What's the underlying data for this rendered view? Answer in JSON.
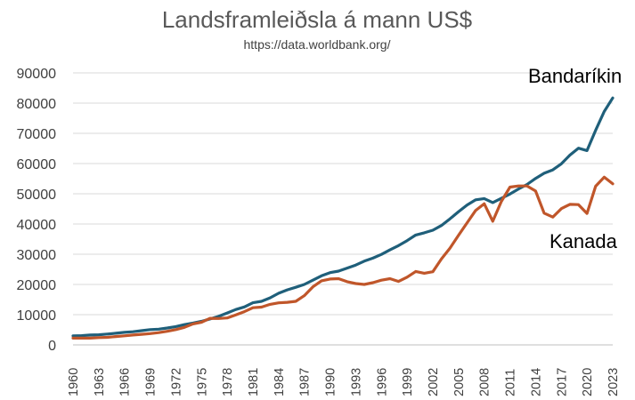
{
  "chart_data": {
    "type": "line",
    "title": "Landsframleiðsla á mann US$",
    "subtitle": "https://data.worldbank.org/",
    "xlabel": "",
    "ylabel": "",
    "ylim": [
      0,
      90000
    ],
    "yticks": [
      0,
      10000,
      20000,
      30000,
      40000,
      50000,
      60000,
      70000,
      80000,
      90000
    ],
    "xtick_labels": [
      "1960",
      "1963",
      "1966",
      "1969",
      "1972",
      "1975",
      "1978",
      "1981",
      "1984",
      "1987",
      "1990",
      "1993",
      "1996",
      "1999",
      "2002",
      "2005",
      "2008",
      "2011",
      "2014",
      "2017",
      "2020",
      "2023"
    ],
    "grid": true,
    "legend": "none",
    "x": [
      1960,
      1961,
      1962,
      1963,
      1964,
      1965,
      1966,
      1967,
      1968,
      1969,
      1970,
      1971,
      1972,
      1973,
      1974,
      1975,
      1976,
      1977,
      1978,
      1979,
      1980,
      1981,
      1982,
      1983,
      1984,
      1985,
      1986,
      1987,
      1988,
      1989,
      1990,
      1991,
      1992,
      1993,
      1994,
      1995,
      1996,
      1997,
      1998,
      1999,
      2000,
      2001,
      2002,
      2003,
      2004,
      2005,
      2006,
      2007,
      2008,
      2009,
      2010,
      2011,
      2012,
      2013,
      2014,
      2015,
      2016,
      2017,
      2018,
      2019,
      2020,
      2021,
      2022,
      2023
    ],
    "series": [
      {
        "name": "Bandaríkin",
        "color": "#1f5f7a",
        "values": [
          3000,
          3050,
          3250,
          3350,
          3600,
          3850,
          4150,
          4350,
          4700,
          5050,
          5200,
          5600,
          6050,
          6700,
          7200,
          7800,
          8600,
          9450,
          10550,
          11700,
          12550,
          13950,
          14400,
          15550,
          17100,
          18200,
          19050,
          20000,
          21400,
          22850,
          23900,
          24400,
          25400,
          26400,
          27700,
          28700,
          29950,
          31450,
          32850,
          34500,
          36350,
          37100,
          37950,
          39500,
          41700,
          44100,
          46300,
          48000,
          48400,
          47100,
          48500,
          49900,
          51600,
          53100,
          55100,
          56800,
          57900,
          59900,
          62800,
          65100,
          64300,
          71000,
          77200,
          81700
        ]
      },
      {
        "name": "Kanada",
        "color": "#c0562a",
        "values": [
          2250,
          2250,
          2250,
          2400,
          2500,
          2750,
          3000,
          3250,
          3500,
          3750,
          4050,
          4500,
          5050,
          5800,
          6950,
          7500,
          8800,
          8750,
          8900,
          9900,
          11000,
          12300,
          12500,
          13400,
          13900,
          14100,
          14400,
          16300,
          19200,
          21200,
          21800,
          21900,
          20900,
          20300,
          20000,
          20600,
          21400,
          21900,
          21000,
          22400,
          24300,
          23700,
          24200,
          28400,
          32000,
          36300,
          40400,
          44500,
          46700,
          40900,
          47500,
          52200,
          52600,
          52600,
          50900,
          43600,
          42300,
          45100,
          46500,
          46400,
          43500,
          52500,
          55500,
          53300
        ]
      }
    ],
    "annotations": [
      {
        "text": "Bandaríkin",
        "series": 0
      },
      {
        "text": "Kanada",
        "series": 1
      }
    ]
  }
}
